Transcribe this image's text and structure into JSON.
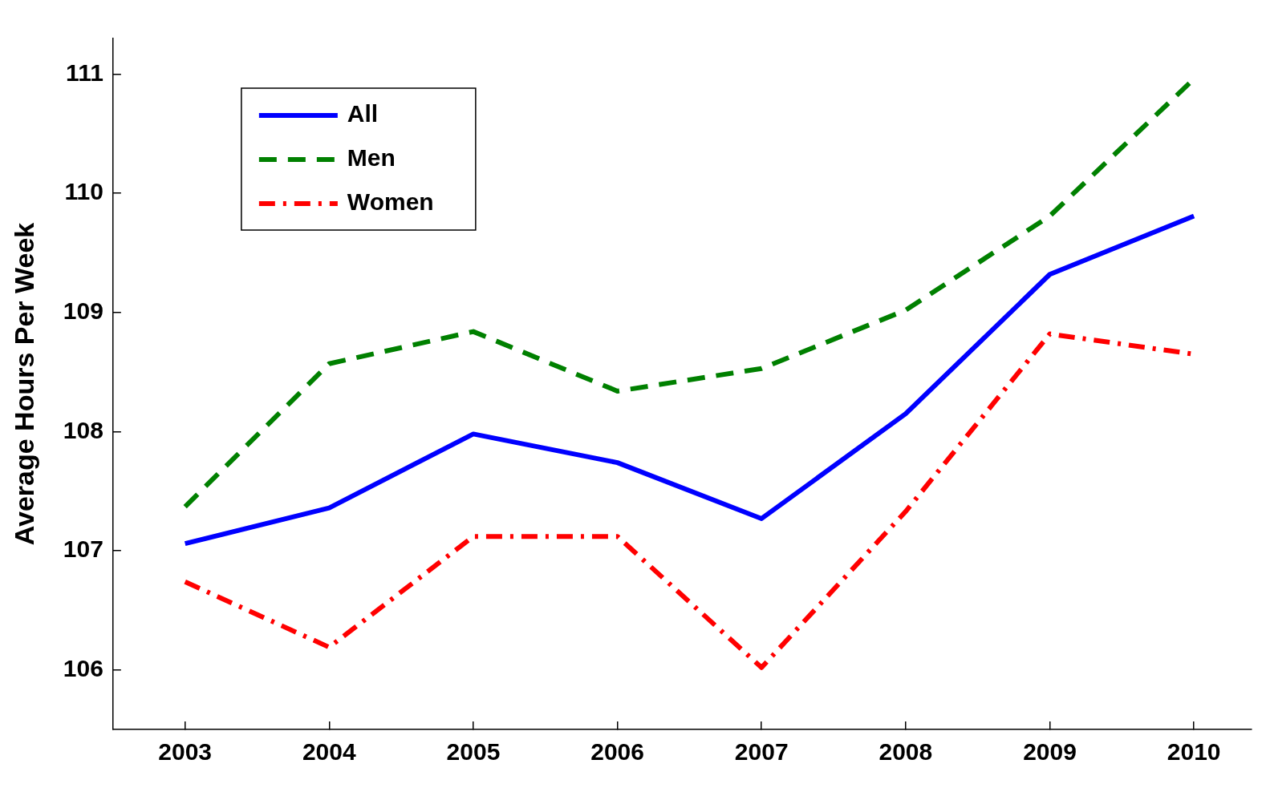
{
  "chart_data": {
    "type": "line",
    "ylabel": "Average Hours Per Week",
    "x": [
      2003,
      2004,
      2005,
      2006,
      2007,
      2008,
      2009,
      2010
    ],
    "series": [
      {
        "name": "All",
        "color": "#0000ff",
        "line_style": "solid",
        "values": [
          107.06,
          107.36,
          107.98,
          107.74,
          107.27,
          108.15,
          109.32,
          109.81
        ]
      },
      {
        "name": "Men",
        "color": "#008000",
        "line_style": "dashed",
        "values": [
          107.37,
          108.57,
          108.84,
          108.34,
          108.53,
          109.02,
          109.81,
          110.96
        ]
      },
      {
        "name": "Women",
        "color": "#ff0000",
        "line_style": "dashdot",
        "values": [
          106.74,
          106.19,
          107.12,
          107.12,
          106.02,
          107.33,
          108.82,
          108.65
        ]
      }
    ],
    "xlim": [
      2002.5,
      2010.4
    ],
    "ylim": [
      105.5,
      111.3
    ],
    "xticks": [
      2003,
      2004,
      2005,
      2006,
      2007,
      2008,
      2009,
      2010
    ],
    "yticks": [
      106,
      107,
      108,
      109,
      110,
      111
    ],
    "grid": false,
    "legend": "top left",
    "marker": "none"
  }
}
